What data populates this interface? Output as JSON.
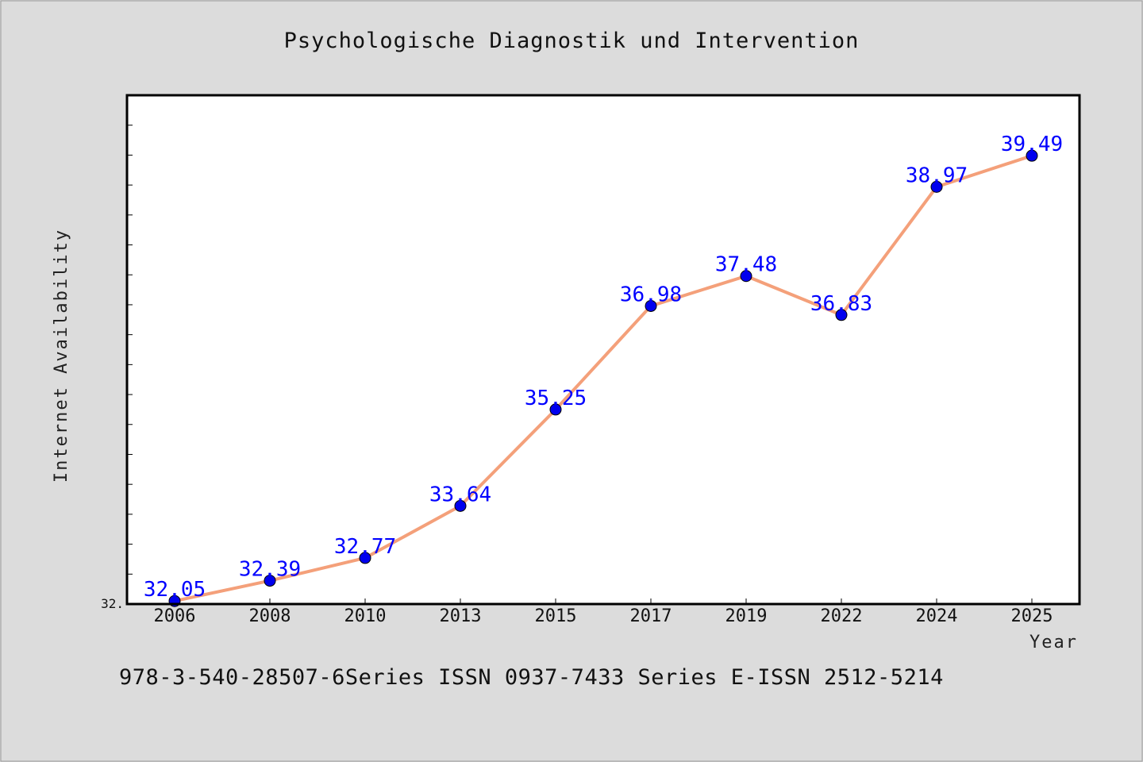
{
  "chart_data": {
    "type": "line",
    "title": "Psychologische Diagnostik und Intervention",
    "xlabel": "Year",
    "ylabel": "Internet Availability",
    "categories": [
      "2006",
      "2008",
      "2010",
      "2013",
      "2015",
      "2017",
      "2019",
      "2022",
      "2024",
      "2025"
    ],
    "series": [
      {
        "values": [
          32.05,
          32.39,
          32.77,
          33.64,
          35.25,
          36.98,
          37.48,
          36.83,
          38.97,
          39.49
        ],
        "labels": [
          "32.05",
          "32.39",
          "32.77",
          "33.64",
          "35.25",
          "36.98",
          "37.48",
          "36.83",
          "38.97",
          "39.49"
        ],
        "line_color": "#f4a07a",
        "marker_color": "#0000ee"
      }
    ],
    "ylim": [
      32.0,
      40.5
    ],
    "ytick_labels": [
      "32."
    ],
    "grid": false,
    "legend": "none"
  },
  "footer": {
    "text": "978-3-540-28507-6Series ISSN 0937-7433 Series E-ISSN 2512-5214"
  }
}
